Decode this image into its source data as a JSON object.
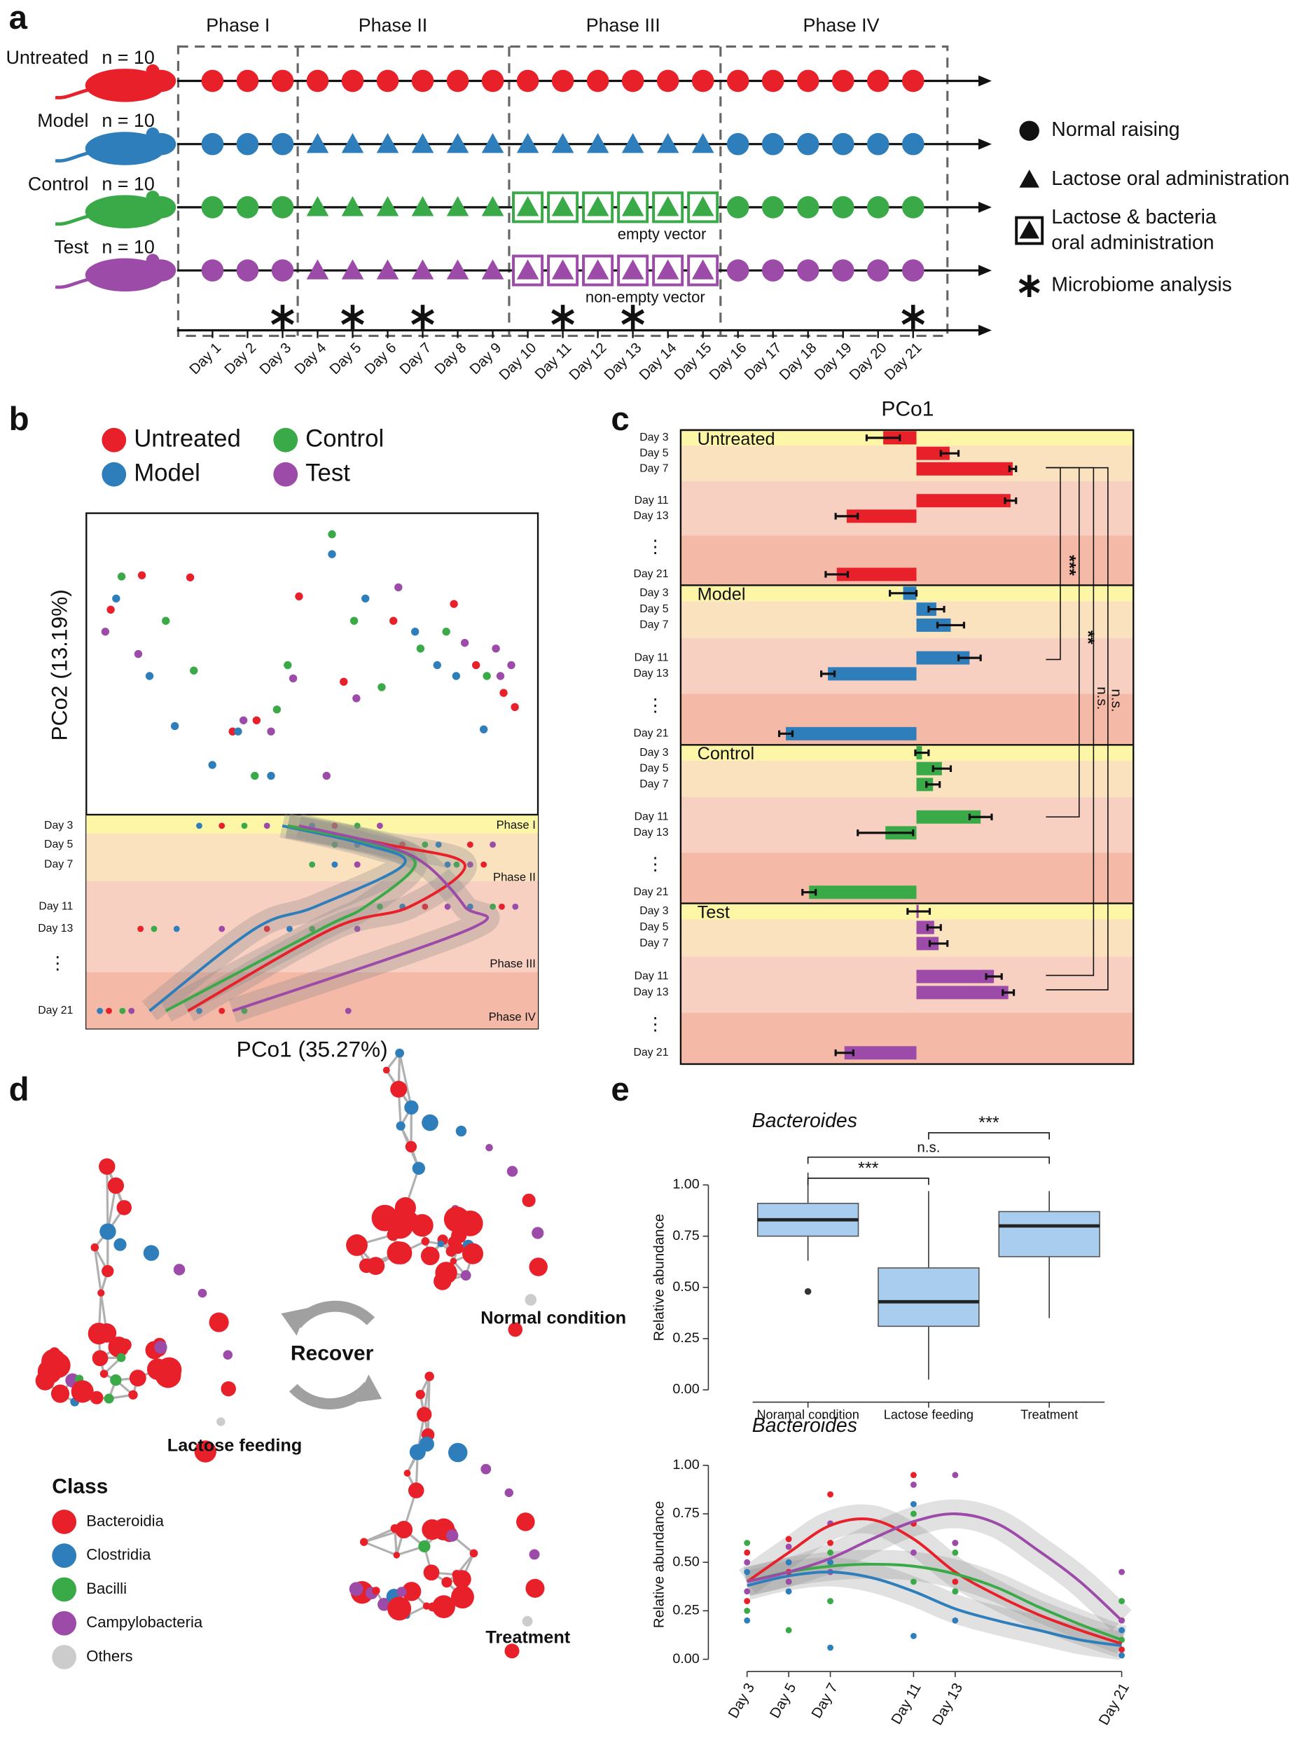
{
  "panel_labels": [
    "a",
    "b",
    "c",
    "d",
    "e"
  ],
  "panel_a": {
    "phases": [
      "Phase I",
      "Phase II",
      "Phase III",
      "Phase IV"
    ],
    "rows": [
      {
        "name": "Untreated",
        "n": "n = 10",
        "color": "#e8202a",
        "markers": [
          "circle",
          "circle",
          "circle",
          "circle"
        ]
      },
      {
        "name": "Model",
        "n": "n = 10",
        "color": "#2e7ebc",
        "markers": [
          "circle",
          "triangle",
          "triangle",
          "circle"
        ]
      },
      {
        "name": "Control",
        "n": "n = 10",
        "color": "#3aaa48",
        "markers": [
          "circle",
          "triangle",
          "boxed-triangle",
          "circle"
        ],
        "note": "empty vector"
      },
      {
        "name": "Test",
        "n": "n = 10",
        "color": "#9c4ba8",
        "markers": [
          "circle",
          "triangle",
          "boxed-triangle",
          "circle"
        ],
        "note": "non-empty vector"
      }
    ],
    "days": [
      "Day 1",
      "Day 2",
      "Day 3",
      "Day 4",
      "Day 5",
      "Day 6",
      "Day 7",
      "Day 8",
      "Day 9",
      "Day 10",
      "Day 11",
      "Day 12",
      "Day 13",
      "Day 14",
      "Day 15",
      "Day 16",
      "Day 17",
      "Day 18",
      "Day 19",
      "Day 20",
      "Day 21"
    ],
    "microbiome_days": [
      2,
      4,
      6,
      10,
      12,
      20
    ],
    "legend": [
      {
        "marker": "circle",
        "lines": [
          "Normal raising"
        ]
      },
      {
        "marker": "triangle",
        "lines": [
          "Lactose oral administration"
        ]
      },
      {
        "marker": "boxed-triangle",
        "lines": [
          "Lactose & bacteria",
          "oral administration"
        ]
      },
      {
        "marker": "asterisk",
        "lines": [
          "Microbiome analysis"
        ]
      }
    ]
  },
  "panel_d": {
    "conditions": [
      "Lactose feeding",
      "Normal condition",
      "Treatment"
    ],
    "recover": "Recover",
    "legend_title": "Class",
    "classes": [
      {
        "name": "Bacteroidia",
        "color": "#e8202a"
      },
      {
        "name": "Clostridia",
        "color": "#2e7ebc"
      },
      {
        "name": "Bacilli",
        "color": "#3aaa48"
      },
      {
        "name": "Campylobacteria",
        "color": "#9c4ba8"
      },
      {
        "name": "Others",
        "color": "#cccccc"
      }
    ]
  },
  "chart_data": [
    {
      "type": "scatter",
      "x_label": "PCo1 (35.27%)",
      "y_label": "PCo2 (13.19%)",
      "xlim": [
        0,
        100
      ],
      "ylim": [
        0,
        100
      ],
      "series": [
        {
          "name": "Untreated",
          "color": "#e8202a",
          "x": [
            5.4,
            12.3,
            23,
            32.4,
            37.7,
            47.1,
            57,
            68,
            81.4,
            86.3,
            92.4,
            94.9
          ],
          "y": [
            68,
            79.4,
            78.7,
            27.6,
            31.3,
            72.4,
            44.1,
            64.3,
            69.9,
            49.6,
            40.4,
            35.7
          ]
        },
        {
          "name": "Model",
          "color": "#2e7ebc",
          "x": [
            6.6,
            14,
            19.6,
            27.9,
            33.6,
            40.9,
            54.4,
            61.8,
            72.8,
            81.9,
            88,
            77.7
          ],
          "y": [
            71.7,
            46,
            29.4,
            16.5,
            27.6,
            12.9,
            86.4,
            71.7,
            60.7,
            46,
            28.3,
            49.6
          ]
        },
        {
          "name": "Control",
          "color": "#3aaa48",
          "x": [
            7.8,
            17.6,
            23.8,
            37.3,
            44.6,
            54.4,
            59.3,
            65.4,
            74,
            79.7,
            88.7,
            42.2
          ],
          "y": [
            79,
            64.3,
            47.8,
            12.9,
            49.6,
            93,
            64.3,
            42.3,
            55.1,
            60.7,
            46,
            34.9
          ]
        },
        {
          "name": "Test",
          "color": "#9c4ba8",
          "x": [
            4.2,
            11.5,
            34.8,
            40.9,
            45.8,
            53.2,
            59.8,
            69.1,
            83.8,
            90.7,
            94.1,
            91.7
          ],
          "y": [
            60.7,
            53.3,
            31.3,
            27.6,
            45.2,
            12.9,
            38.6,
            75.4,
            57,
            55.1,
            49.6,
            46
          ]
        }
      ]
    },
    {
      "type": "line",
      "orientation": "horizontal",
      "categories": [
        "Day 3",
        "Day 5",
        "Day 7",
        "Day 11",
        "Day 13",
        "Day 21"
      ],
      "ellipsis": "⋮",
      "xlim": [
        0,
        100
      ],
      "series": [
        {
          "color": "#e8202a",
          "values": [
            44.6,
            66.7,
            83.8,
            71.6,
            54.4,
            22.5
          ],
          "dot_day": [
            0,
            0,
            1,
            1,
            2,
            2,
            3,
            3,
            4,
            4,
            5,
            5
          ],
          "dot_x": [
            30,
            55,
            70,
            85,
            60,
            88,
            75,
            92,
            12,
            40,
            5,
            30
          ]
        },
        {
          "color": "#2e7ebc",
          "values": [
            43.4,
            61.8,
            70.3,
            50.7,
            37.3,
            14
          ],
          "dot_day": [
            0,
            0,
            1,
            1,
            2,
            2,
            3,
            3,
            4,
            4,
            5,
            5
          ],
          "dot_x": [
            25,
            50,
            60,
            78,
            55,
            80,
            70,
            85,
            20,
            45,
            3,
            25
          ]
        },
        {
          "color": "#3aaa48",
          "values": [
            44.6,
            64.2,
            72.8,
            61.8,
            52,
            17.6
          ],
          "dot_day": [
            0,
            0,
            1,
            1,
            2,
            2,
            3,
            3,
            4,
            4,
            5,
            5
          ],
          "dot_x": [
            35,
            60,
            55,
            75,
            50,
            82,
            65,
            90,
            15,
            50,
            8,
            35
          ]
        },
        {
          "color": "#9c4ba8",
          "values": [
            47.1,
            65.4,
            75.2,
            83.8,
            85,
            32.4
          ],
          "dot_day": [
            0,
            0,
            1,
            1,
            2,
            2,
            3,
            3,
            4,
            4,
            5,
            5
          ],
          "dot_x": [
            40,
            65,
            65,
            90,
            60,
            85,
            80,
            95,
            30,
            60,
            10,
            58
          ]
        }
      ]
    },
    {
      "type": "bar",
      "orientation": "horizontal",
      "title": "PCo1",
      "categories": [
        "Day 3",
        "Day 5",
        "Day 7",
        "Day 11",
        "Day 13",
        "Day 21"
      ],
      "ellipsis": "⋮",
      "xlim": [
        -2.13,
        1.96
      ],
      "series": [
        {
          "name": "Untreated",
          "color": "#e8202a",
          "values": [
            -0.3,
            0.3,
            0.87,
            0.85,
            -0.63,
            -0.72
          ],
          "errors": [
            0.15,
            0.08,
            0.03,
            0.05,
            0.1,
            0.1
          ]
        },
        {
          "name": "Model",
          "color": "#2e7ebc",
          "values": [
            -0.12,
            0.18,
            0.31,
            0.48,
            -0.8,
            -1.18
          ],
          "errors": [
            0.12,
            0.07,
            0.12,
            0.1,
            0.06,
            0.06
          ]
        },
        {
          "name": "Control",
          "color": "#3aaa48",
          "values": [
            0.05,
            0.23,
            0.15,
            0.58,
            -0.28,
            -0.97
          ],
          "errors": [
            0.06,
            0.08,
            0.06,
            0.1,
            0.25,
            0.06
          ]
        },
        {
          "name": "Test",
          "color": "#9c4ba8",
          "values": [
            0.02,
            0.16,
            0.2,
            0.7,
            0.83,
            -0.65
          ],
          "errors": [
            0.1,
            0.06,
            0.08,
            0.07,
            0.05,
            0.08
          ]
        }
      ],
      "significance": [
        "***",
        "**",
        "n.s.",
        "n.s."
      ]
    },
    {
      "type": "box",
      "title": "Bacteroides",
      "y_label": "Relative abundance",
      "categories": [
        "Noramal condition",
        "Lactose feeding",
        "Treatment"
      ],
      "color": "#a9cdee",
      "ylim": [
        -0.06,
        1.157
      ],
      "yticks": [
        {
          "value": 0,
          "label": "0.00"
        },
        {
          "value": 0.25,
          "label": "0.25"
        },
        {
          "value": 0.5,
          "label": "0.50"
        },
        {
          "value": 0.75,
          "label": "0.75"
        },
        {
          "value": 1,
          "label": "1.00"
        }
      ],
      "boxes": [
        {
          "low": 0.63,
          "q1": 0.75,
          "median": 0.83,
          "q3": 0.91,
          "high": 1.06,
          "outliers": [
            0.48
          ]
        },
        {
          "low": 0.05,
          "q1": 0.31,
          "median": 0.43,
          "q3": 0.595,
          "high": 0.97,
          "outliers": []
        },
        {
          "low": 0.35,
          "q1": 0.65,
          "median": 0.8,
          "q3": 0.87,
          "high": 0.97,
          "outliers": []
        }
      ],
      "significance": [
        "***",
        "n.s.",
        "***"
      ]
    },
    {
      "type": "line",
      "title": "Bacteroides",
      "y_label": "Relative abundance",
      "x": [
        3,
        5,
        7,
        9,
        11,
        13,
        15,
        17,
        19,
        21
      ],
      "xlim": [
        1.14,
        21.88
      ],
      "xticks": [
        {
          "value": 3,
          "label": "Day 3"
        },
        {
          "value": 5,
          "label": "Day 5"
        },
        {
          "value": 7,
          "label": "Day 7"
        },
        {
          "value": 11,
          "label": "Day 11"
        },
        {
          "value": 13,
          "label": "Day 13"
        },
        {
          "value": 21,
          "label": "Day 21"
        }
      ],
      "ylim": [
        -0.063,
        1.04
      ],
      "yticks": [
        {
          "value": 0,
          "label": "0.00"
        },
        {
          "value": 0.25,
          "label": "0.25"
        },
        {
          "value": 0.5,
          "label": "0.50"
        },
        {
          "value": 0.75,
          "label": "0.75"
        },
        {
          "value": 1,
          "label": "1.00"
        }
      ],
      "series": [
        {
          "color": "#e8202a",
          "values": [
            0.4,
            0.55,
            0.69,
            0.72,
            0.62,
            0.45,
            0.33,
            0.23,
            0.15,
            0.08
          ],
          "dot_x": [
            3,
            3,
            5,
            5,
            7,
            7,
            11,
            11,
            13,
            13,
            21,
            21
          ],
          "dot_y": [
            0.3,
            0.55,
            0.45,
            0.62,
            0.6,
            0.85,
            0.7,
            0.95,
            0.4,
            0.6,
            0.05,
            0.2
          ]
        },
        {
          "color": "#2e7ebc",
          "values": [
            0.38,
            0.43,
            0.45,
            0.42,
            0.35,
            0.26,
            0.2,
            0.15,
            0.1,
            0.07
          ],
          "dot_x": [
            3,
            3,
            5,
            5,
            7,
            7,
            11,
            11,
            13,
            13,
            21,
            21
          ],
          "dot_y": [
            0.2,
            0.45,
            0.35,
            0.5,
            0.06,
            0.5,
            0.12,
            0.8,
            0.2,
            0.35,
            0.02,
            0.15
          ]
        },
        {
          "color": "#3aaa48",
          "values": [
            0.4,
            0.45,
            0.48,
            0.49,
            0.48,
            0.44,
            0.37,
            0.27,
            0.18,
            0.1
          ],
          "dot_x": [
            3,
            3,
            5,
            5,
            7,
            7,
            11,
            11,
            13,
            13,
            21,
            21
          ],
          "dot_y": [
            0.25,
            0.6,
            0.15,
            0.4,
            0.3,
            0.55,
            0.4,
            0.75,
            0.35,
            0.55,
            0.1,
            0.3
          ]
        },
        {
          "color": "#9c4ba8",
          "values": [
            0.4,
            0.45,
            0.52,
            0.62,
            0.71,
            0.75,
            0.7,
            0.56,
            0.4,
            0.2
          ],
          "dot_x": [
            3,
            3,
            5,
            5,
            7,
            7,
            11,
            11,
            13,
            13,
            21,
            21
          ],
          "dot_y": [
            0.35,
            0.5,
            0.4,
            0.58,
            0.45,
            0.7,
            0.55,
            0.9,
            0.6,
            0.95,
            0.2,
            0.45
          ]
        }
      ]
    }
  ]
}
